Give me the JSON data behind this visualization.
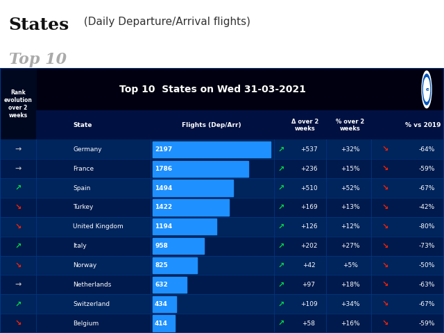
{
  "title": "Top 10  States on Wed 31-03-2021",
  "header_title1": "States",
  "header_title2": " (Daily Departure/Arrival flights)",
  "header_subtitle": "Top 10",
  "rank_header": "Rank\nevolution\nover 2\nweeks",
  "rows": [
    {
      "rank_arrow": "→",
      "rank_color": "gray",
      "state": "Germany",
      "flights": 2197,
      "delta": "+537",
      "pct": "+32%",
      "vs2019": "-64%"
    },
    {
      "rank_arrow": "→",
      "rank_color": "gray",
      "state": "France",
      "flights": 1786,
      "delta": "+236",
      "pct": "+15%",
      "vs2019": "-59%"
    },
    {
      "rank_arrow": "↗",
      "rank_color": "green",
      "state": "Spain",
      "flights": 1494,
      "delta": "+510",
      "pct": "+52%",
      "vs2019": "-67%"
    },
    {
      "rank_arrow": "↘",
      "rank_color": "red",
      "state": "Turkey",
      "flights": 1422,
      "delta": "+169",
      "pct": "+13%",
      "vs2019": "-42%"
    },
    {
      "rank_arrow": "↘",
      "rank_color": "red",
      "state": "United Kingdom",
      "flights": 1194,
      "delta": "+126",
      "pct": "+12%",
      "vs2019": "-80%"
    },
    {
      "rank_arrow": "↗",
      "rank_color": "green",
      "state": "Italy",
      "flights": 958,
      "delta": "+202",
      "pct": "+27%",
      "vs2019": "-73%"
    },
    {
      "rank_arrow": "↘",
      "rank_color": "red",
      "state": "Norway",
      "flights": 825,
      "delta": "+42",
      "pct": "+5%",
      "vs2019": "-50%"
    },
    {
      "rank_arrow": "→",
      "rank_color": "gray",
      "state": "Netherlands",
      "flights": 632,
      "delta": "+97",
      "pct": "+18%",
      "vs2019": "-63%"
    },
    {
      "rank_arrow": "↗",
      "rank_color": "green",
      "state": "Switzerland",
      "flights": 434,
      "delta": "+109",
      "pct": "+34%",
      "vs2019": "-67%"
    },
    {
      "rank_arrow": "↘",
      "rank_color": "red",
      "state": "Belgium",
      "flights": 414,
      "delta": "+58",
      "pct": "+16%",
      "vs2019": "-59%"
    }
  ],
  "bg_dark": "#000820",
  "bg_navy": "#001245",
  "bg_blue": "#001a55",
  "bg_mid": "#001850",
  "bar_color": "#1e90ff",
  "max_flights": 2197,
  "figure_bg": "#ffffff",
  "title_bg": "#000010",
  "subheader_bg": "#001040"
}
